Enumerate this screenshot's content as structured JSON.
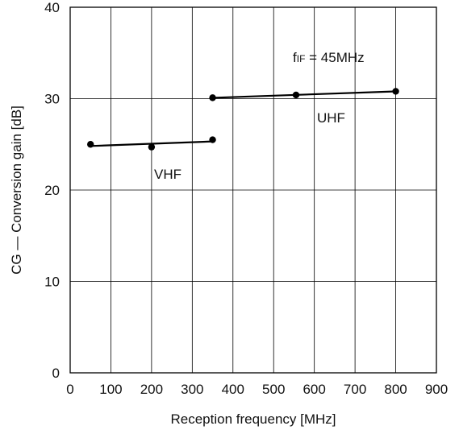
{
  "chart_data": {
    "type": "line",
    "title": "",
    "xlabel": "Reception frequency [MHz]",
    "ylabel": "CG — Conversion gain [dB]",
    "xlim": [
      0,
      900
    ],
    "ylim": [
      0,
      40
    ],
    "x_ticks": [
      0,
      100,
      200,
      300,
      400,
      500,
      600,
      700,
      800,
      900
    ],
    "y_ticks": [
      0,
      10,
      20,
      30,
      40
    ],
    "grid": true,
    "legend": "none",
    "series": [
      {
        "name": "VHF",
        "x": [
          50,
          200,
          350
        ],
        "y": [
          25.0,
          24.7,
          25.5
        ]
      },
      {
        "name": "UHF",
        "x": [
          350,
          555,
          800
        ],
        "y": [
          30.1,
          30.4,
          30.8
        ]
      }
    ],
    "annotations": {
      "vhf_label": "VHF",
      "uhf_label": "UHF",
      "fif_prefix": "f",
      "fif_subscript": "IF",
      "fif_value": " = 45MHz"
    },
    "colors": {
      "line": "#000000",
      "grid": "#000000",
      "frame": "#000000"
    }
  }
}
